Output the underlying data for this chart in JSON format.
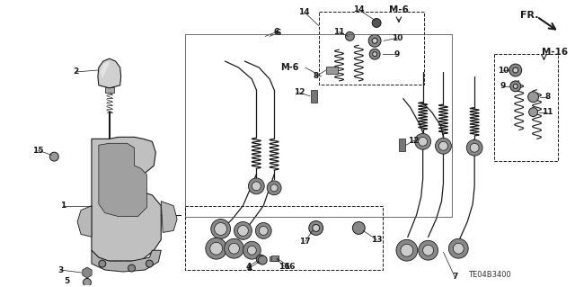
{
  "bg_color": "#ffffff",
  "line_color": "#1a1a1a",
  "fig_width": 6.4,
  "fig_height": 3.19,
  "dpi": 100,
  "diagram_code": "TE04B3400"
}
